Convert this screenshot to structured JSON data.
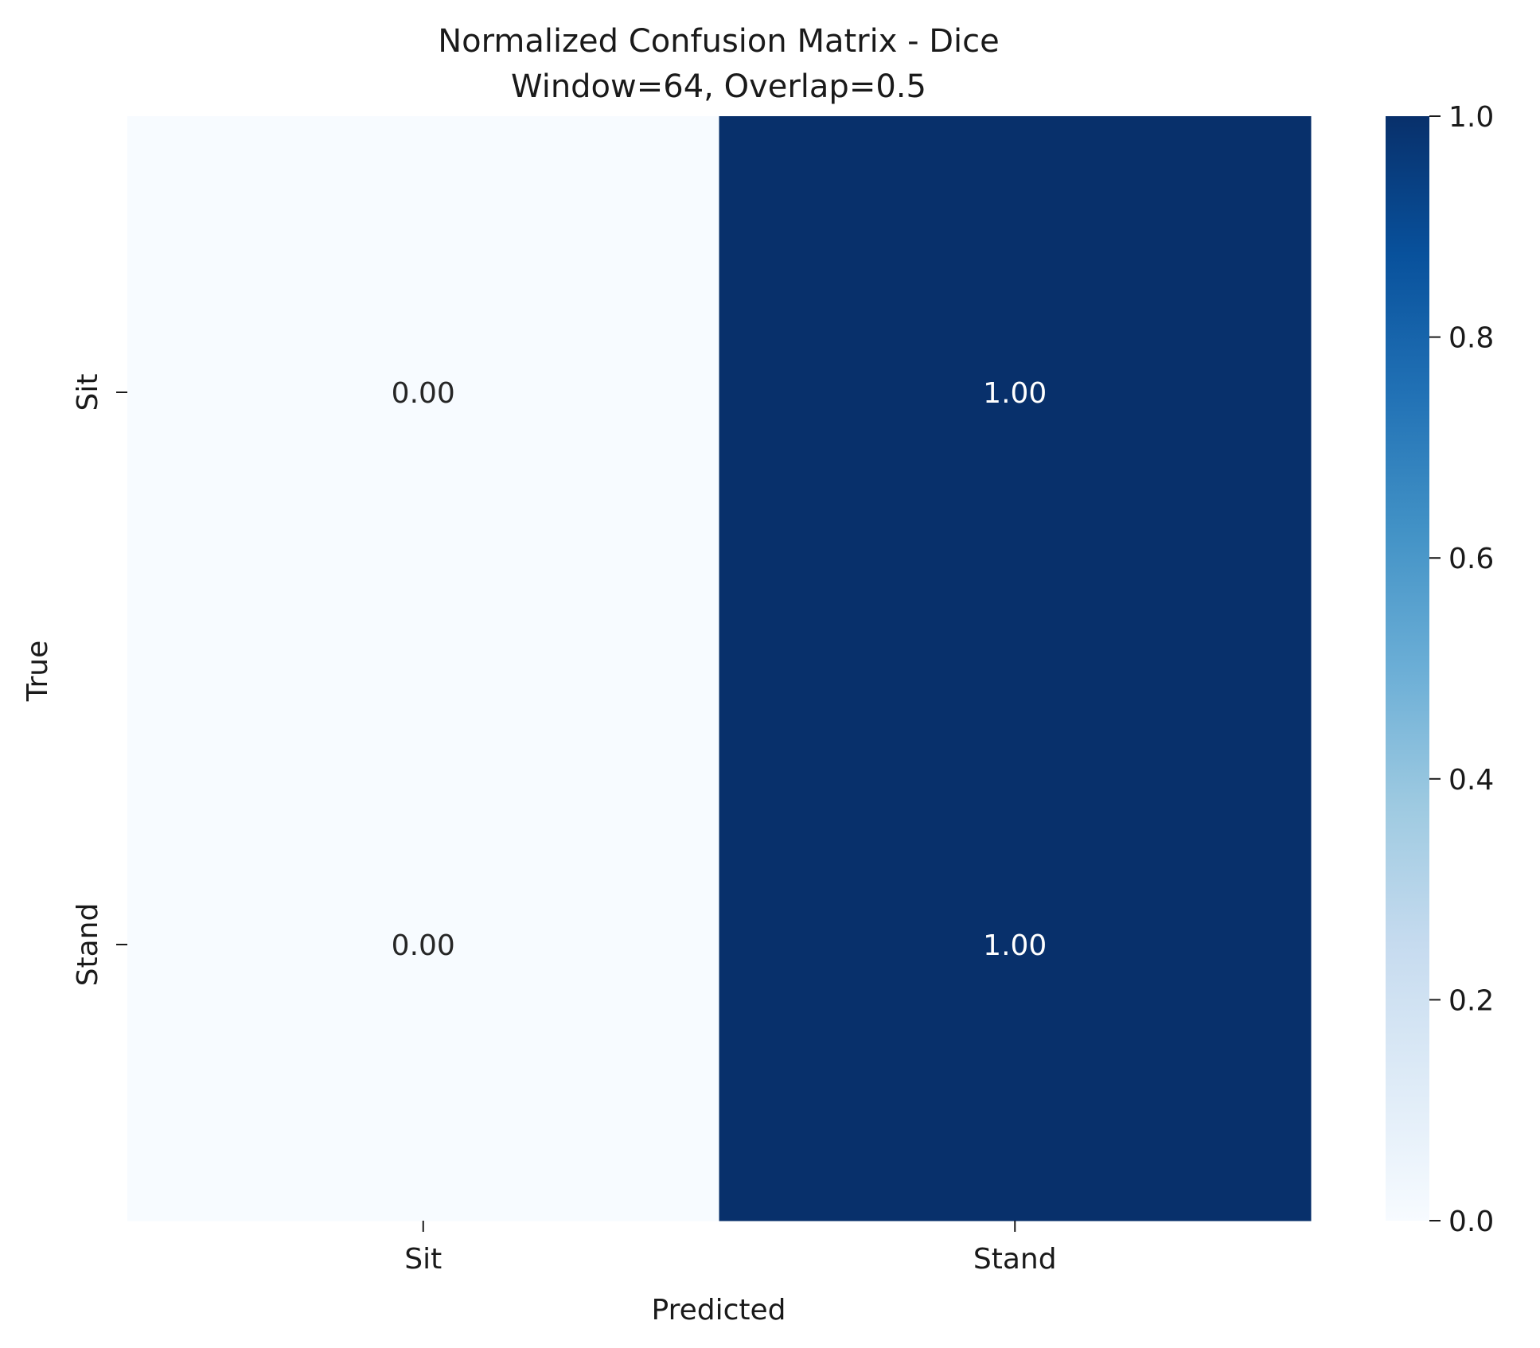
{
  "chart_data": {
    "type": "heatmap",
    "title_line1": "Normalized Confusion Matrix - Dice",
    "title_line2": "Window=64, Overlap=0.5",
    "xlabel": "Predicted",
    "ylabel": "True",
    "x_categories": [
      "Sit",
      "Stand"
    ],
    "y_categories": [
      "Sit",
      "Stand"
    ],
    "values": [
      [
        0.0,
        1.0
      ],
      [
        0.0,
        1.0
      ]
    ],
    "cell_labels": [
      [
        "0.00",
        "1.00"
      ],
      [
        "0.00",
        "1.00"
      ]
    ],
    "colorbar": {
      "range": [
        0.0,
        1.0
      ],
      "ticks": [
        "0.0",
        "0.2",
        "0.4",
        "0.6",
        "0.8",
        "1.0"
      ],
      "colormap": "Blues",
      "low_color": "#f7fbff",
      "high_color": "#08306b"
    }
  }
}
